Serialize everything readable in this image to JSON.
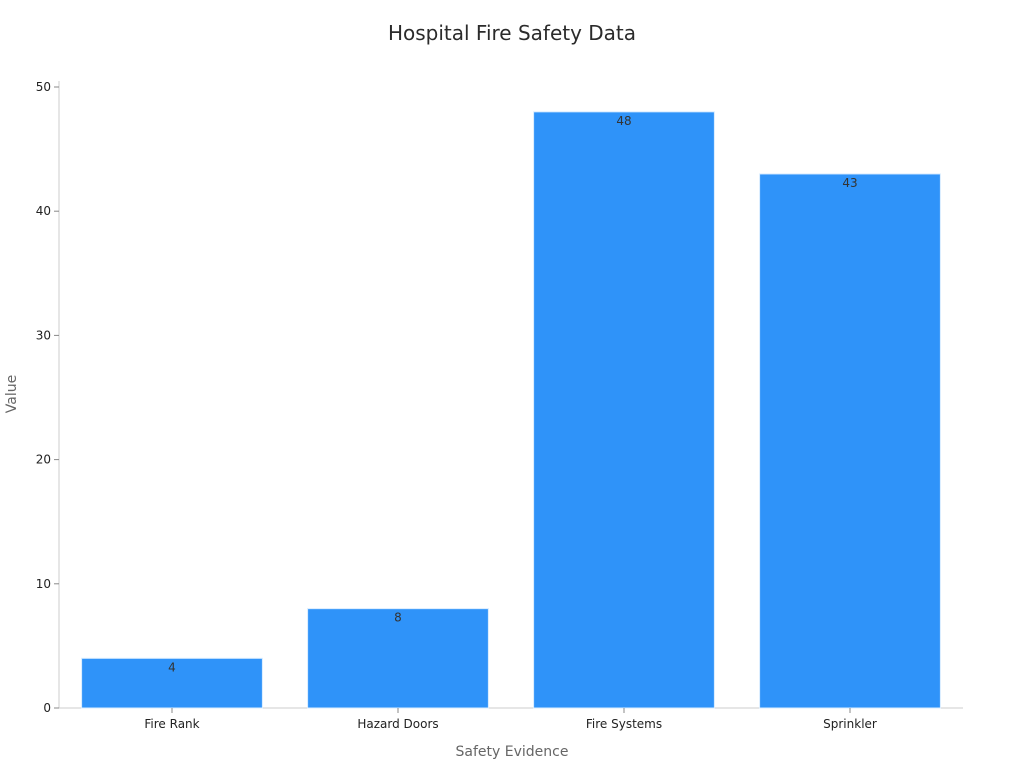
{
  "chart_data": {
    "type": "bar",
    "title": "Hospital Fire Safety Data",
    "xlabel": "Safety Evidence",
    "ylabel": "Value",
    "categories": [
      "Fire Rank",
      "Hazard Doors",
      "Fire Systems",
      "Sprinkler"
    ],
    "values": [
      4,
      8,
      48,
      43
    ],
    "ylim": [
      0,
      50
    ],
    "yticks": [
      0,
      10,
      20,
      30,
      40,
      50
    ],
    "data_labels": [
      "4",
      "8",
      "48",
      "43"
    ],
    "bar_color": "#2f93f9",
    "grid": false,
    "legend": "none"
  }
}
